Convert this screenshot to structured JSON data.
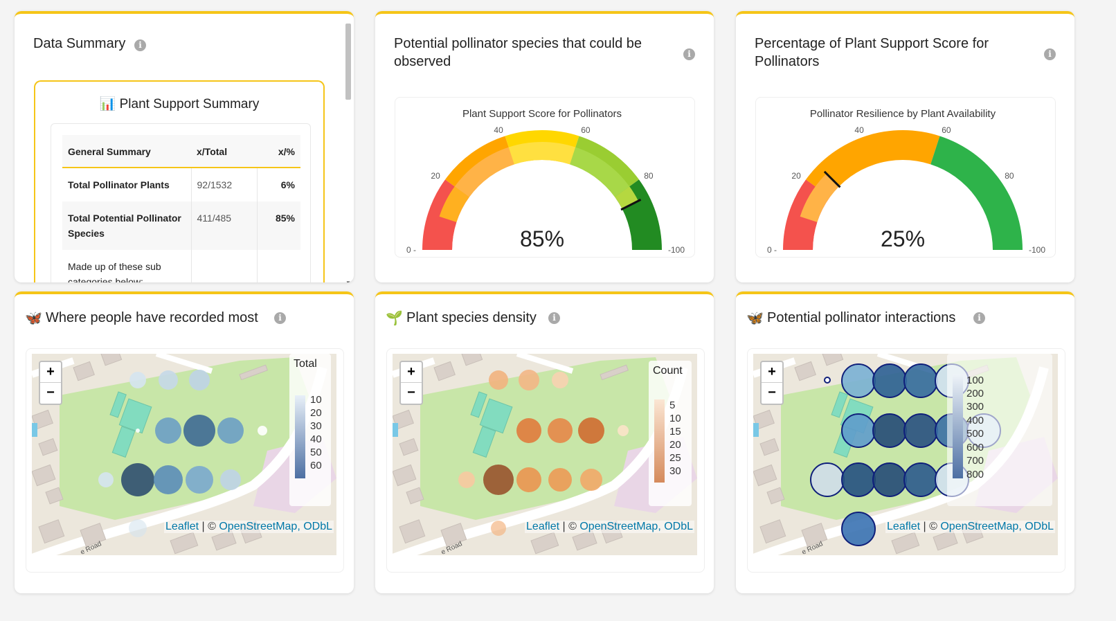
{
  "summary": {
    "title": "Data Summary",
    "box_title": "Plant Support Summary",
    "headers": [
      "General Summary",
      "x/Total",
      "x/%"
    ],
    "rows": [
      {
        "label": "Total Pollinator Plants",
        "frac": "92/1532",
        "pct": "6%"
      },
      {
        "label": "Total Potential Pollinator Species",
        "frac": "411/485",
        "pct": "85%"
      },
      {
        "label": "Made up of these sub categories below:",
        "frac": "",
        "pct": ""
      }
    ]
  },
  "gauge1": {
    "card_title": "Potential pollinator species that could be observed",
    "chart_title": "Plant Support Score for Pollinators",
    "value_text": "85%",
    "value": 85,
    "ticks": [
      "0",
      "20",
      "40",
      "60",
      "80",
      "100"
    ]
  },
  "gauge2": {
    "card_title": "Percentage of Plant Support Score for Pollinators",
    "chart_title": "Pollinator Resilience by Plant Availability",
    "value_text": "25%",
    "value": 25,
    "ticks": [
      "0",
      "20",
      "40",
      "60",
      "80",
      "100"
    ]
  },
  "map1": {
    "title": "Where people have recorded most",
    "legend_title": "Total",
    "legend_labels": [
      "10",
      "20",
      "30",
      "40",
      "50",
      "60"
    ]
  },
  "map2": {
    "title": "Plant species density",
    "legend_title": "Count",
    "legend_labels": [
      "5",
      "10",
      "15",
      "20",
      "25",
      "30"
    ]
  },
  "map3": {
    "title": "Potential pollinator interactions",
    "legend_labels": [
      "100",
      "200",
      "300",
      "400",
      "500",
      "600",
      "700",
      "800"
    ]
  },
  "map_common": {
    "zoom_in": "+",
    "zoom_out": "−",
    "attr_leaflet": "Leaflet",
    "attr_sep": " | © ",
    "attr_osm": "OpenStreetMap, ODbL",
    "road_label": "e Road"
  },
  "icons": {
    "info": "i",
    "chart": "📊",
    "butterfly": "🦋",
    "sprout": "🌱"
  },
  "colors": {
    "accent": "#f5c518",
    "gauge_red": "#f4524d",
    "gauge_orange": "#ffa500",
    "gauge_yellow": "#ffd700",
    "gauge_lightgreen": "#9acd32",
    "gauge_green": "#228b22",
    "map_green": "#c8e6a8"
  }
}
